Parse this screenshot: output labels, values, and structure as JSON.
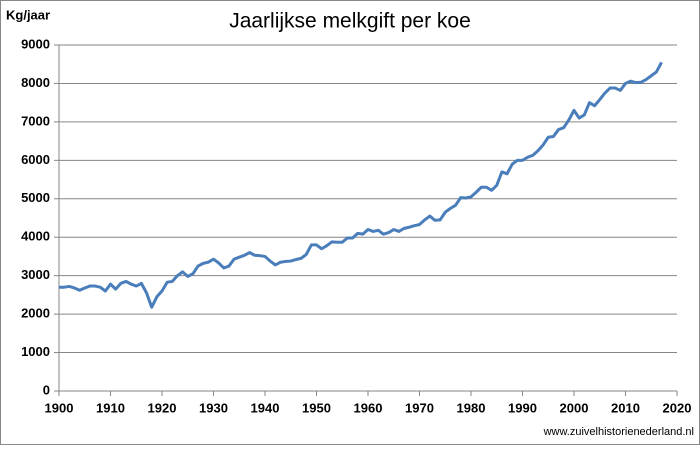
{
  "chart_data": {
    "type": "line",
    "title": "Jaarlijkse melkgift  per koe",
    "y_label": "Kg/jaar",
    "source": "www.zuivelhistorienederland.nl",
    "x": [
      1900,
      1901,
      1902,
      1903,
      1904,
      1905,
      1906,
      1907,
      1908,
      1909,
      1910,
      1911,
      1912,
      1913,
      1914,
      1915,
      1916,
      1917,
      1918,
      1919,
      1920,
      1921,
      1922,
      1923,
      1924,
      1925,
      1926,
      1927,
      1928,
      1929,
      1930,
      1931,
      1932,
      1933,
      1934,
      1935,
      1936,
      1937,
      1938,
      1939,
      1940,
      1941,
      1942,
      1943,
      1944,
      1945,
      1946,
      1947,
      1948,
      1949,
      1950,
      1951,
      1952,
      1953,
      1954,
      1955,
      1956,
      1957,
      1958,
      1959,
      1960,
      1961,
      1962,
      1963,
      1964,
      1965,
      1966,
      1967,
      1968,
      1969,
      1970,
      1971,
      1972,
      1973,
      1974,
      1975,
      1976,
      1977,
      1978,
      1979,
      1980,
      1981,
      1982,
      1983,
      1984,
      1985,
      1986,
      1987,
      1988,
      1989,
      1990,
      1991,
      1992,
      1993,
      1994,
      1995,
      1996,
      1997,
      1998,
      1999,
      2000,
      2001,
      2002,
      2003,
      2004,
      2005,
      2006,
      2007,
      2008,
      2009,
      2010,
      2011,
      2012,
      2013,
      2014,
      2015,
      2016,
      2017
    ],
    "series": [
      {
        "name": "Kg/jaar",
        "color": "#4a7ebb",
        "values": [
          2700,
          2700,
          2720,
          2680,
          2620,
          2680,
          2730,
          2730,
          2700,
          2600,
          2780,
          2650,
          2800,
          2850,
          2780,
          2730,
          2800,
          2550,
          2180,
          2450,
          2600,
          2830,
          2850,
          3000,
          3100,
          2980,
          3050,
          3250,
          3320,
          3350,
          3430,
          3330,
          3200,
          3250,
          3430,
          3480,
          3530,
          3600,
          3530,
          3520,
          3500,
          3380,
          3280,
          3350,
          3370,
          3380,
          3420,
          3450,
          3550,
          3800,
          3800,
          3700,
          3780,
          3880,
          3870,
          3870,
          3980,
          3980,
          4100,
          4080,
          4200,
          4150,
          4180,
          4080,
          4120,
          4200,
          4150,
          4230,
          4260,
          4300,
          4330,
          4450,
          4550,
          4440,
          4450,
          4650,
          4750,
          4830,
          5030,
          5020,
          5050,
          5170,
          5300,
          5300,
          5220,
          5350,
          5700,
          5650,
          5900,
          6000,
          6000,
          6080,
          6130,
          6250,
          6400,
          6600,
          6620,
          6800,
          6850,
          7050,
          7300,
          7100,
          7180,
          7500,
          7420,
          7580,
          7750,
          7880,
          7880,
          7820,
          8000,
          8060,
          8020,
          8030,
          8100,
          8200,
          8300,
          8550
        ]
      }
    ],
    "xlim": [
      1900,
      2020
    ],
    "xticks": [
      1900,
      1910,
      1920,
      1930,
      1940,
      1950,
      1960,
      1970,
      1980,
      1990,
      2000,
      2010,
      2020
    ],
    "ylim": [
      0,
      9000
    ],
    "yticks": [
      0,
      1000,
      2000,
      3000,
      4000,
      5000,
      6000,
      7000,
      8000,
      9000
    ],
    "grid": true
  }
}
